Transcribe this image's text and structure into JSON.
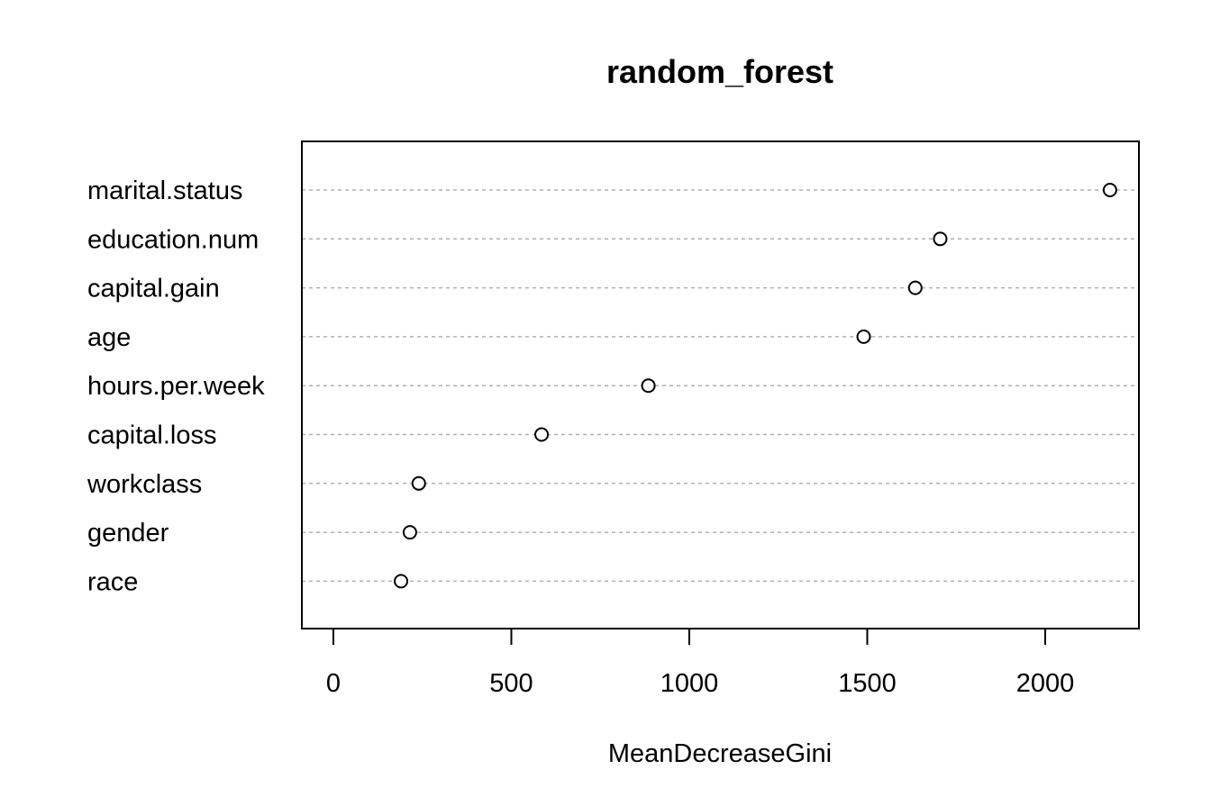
{
  "chart_data": {
    "type": "scatter",
    "style": "dotchart",
    "title": "random_forest",
    "xlabel": "MeanDecreaseGini",
    "ylabel": "",
    "xlim": [
      0,
      2250
    ],
    "xticks": [
      0,
      500,
      1000,
      1500,
      2000
    ],
    "xtick_labels": [
      "0",
      "500",
      "1000",
      "1500",
      "2000"
    ],
    "grid": "horizontal-dashed",
    "categories": [
      "marital.status",
      "education.num",
      "capital.gain",
      "age",
      "hours.per.week",
      "capital.loss",
      "workclass",
      "gender",
      "race"
    ],
    "values": [
      2182,
      1705,
      1635,
      1490,
      885,
      585,
      240,
      215,
      190
    ]
  }
}
